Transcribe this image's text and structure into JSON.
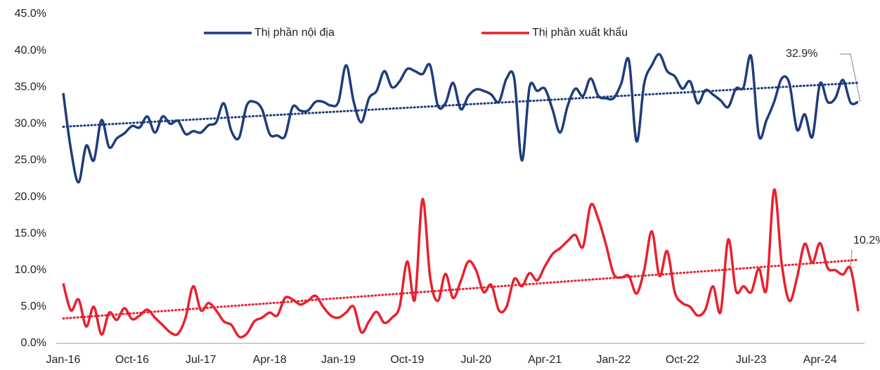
{
  "chart_data": {
    "type": "line",
    "categories": [
      "Jan-16",
      null,
      null,
      null,
      null,
      null,
      null,
      null,
      null,
      "Oct-16",
      null,
      null,
      null,
      null,
      null,
      null,
      null,
      null,
      "Jul-17",
      null,
      null,
      null,
      null,
      null,
      null,
      null,
      null,
      "Apr-18",
      null,
      null,
      null,
      null,
      null,
      null,
      null,
      null,
      "Jan-19",
      null,
      null,
      null,
      null,
      null,
      null,
      null,
      null,
      "Oct-19",
      null,
      null,
      null,
      null,
      null,
      null,
      null,
      null,
      "Jul-20",
      null,
      null,
      null,
      null,
      null,
      null,
      null,
      null,
      "Apr-21",
      null,
      null,
      null,
      null,
      null,
      null,
      null,
      null,
      "Jan-22",
      null,
      null,
      null,
      null,
      null,
      null,
      null,
      null,
      "Oct-22",
      null,
      null,
      null,
      null,
      null,
      null,
      null,
      null,
      "Jul-23",
      null,
      null,
      null,
      null,
      null,
      null,
      null,
      null,
      "Apr-24",
      null,
      null,
      null,
      null,
      null
    ],
    "series": [
      {
        "name": "Thị phần nội địa",
        "color": "#1f3c7c",
        "trend": [
          29.6,
          35.6
        ],
        "values": [
          34.2,
          26.5,
          22.0,
          27.0,
          25.0,
          30.5,
          26.8,
          28.0,
          28.7,
          29.7,
          29.5,
          31.0,
          28.8,
          31.0,
          30.0,
          30.4,
          28.6,
          29.0,
          28.8,
          29.8,
          30.2,
          32.8,
          29.0,
          28.1,
          32.5,
          33.0,
          32.0,
          28.6,
          28.4,
          28.3,
          32.3,
          31.8,
          31.8,
          33.0,
          33.0,
          32.5,
          33.0,
          38.0,
          33.0,
          30.2,
          33.5,
          34.5,
          37.2,
          35.0,
          35.8,
          37.5,
          37.2,
          36.8,
          38.0,
          32.5,
          32.8,
          35.6,
          32.0,
          33.8,
          34.7,
          34.5,
          34.0,
          33.0,
          36.2,
          36.2,
          25.0,
          35.0,
          34.5,
          34.8,
          32.0,
          28.8,
          32.5,
          34.8,
          33.8,
          36.2,
          33.8,
          33.5,
          33.5,
          35.5,
          38.7,
          27.6,
          35.5,
          38.0,
          39.5,
          37.2,
          36.5,
          34.8,
          35.8,
          32.8,
          34.6,
          34.0,
          33.2,
          32.3,
          34.8,
          35.0,
          39.2,
          28.4,
          30.5,
          33.0,
          36.2,
          35.5,
          29.2,
          31.3,
          28.2,
          35.5,
          33.0,
          33.5,
          36.0,
          32.9,
          33.0
        ]
      },
      {
        "name": "Thị phần xuất khẩu",
        "color": "#e8212e",
        "trend": [
          3.4,
          11.4
        ],
        "values": [
          8.2,
          4.5,
          6.0,
          2.3,
          5.0,
          1.2,
          4.2,
          3.2,
          4.8,
          3.3,
          3.8,
          4.6,
          3.5,
          2.5,
          1.5,
          1.3,
          3.5,
          7.8,
          4.5,
          5.5,
          4.5,
          3.0,
          2.5,
          0.9,
          1.3,
          3.0,
          3.5,
          4.2,
          3.8,
          6.2,
          6.0,
          5.3,
          5.8,
          6.5,
          5.0,
          3.8,
          3.5,
          4.2,
          5.0,
          1.5,
          3.0,
          4.3,
          2.8,
          3.5,
          5.0,
          11.2,
          6.0,
          19.7,
          9.0,
          5.8,
          9.5,
          6.2,
          8.5,
          11.2,
          10.0,
          7.0,
          8.0,
          4.5,
          5.0,
          8.8,
          7.8,
          9.6,
          8.6,
          10.5,
          12.2,
          13.0,
          14.0,
          14.8,
          13.2,
          18.9,
          17.0,
          13.5,
          9.5,
          9.0,
          9.2,
          6.8,
          10.0,
          15.3,
          9.2,
          12.6,
          7.0,
          5.5,
          5.0,
          3.8,
          4.6,
          7.8,
          4.3,
          14.2,
          7.2,
          7.8,
          7.0,
          10.2,
          7.4,
          21.0,
          10.8,
          5.8,
          9.0,
          13.6,
          11.0,
          13.7,
          10.3,
          10.0,
          9.4,
          10.2,
          4.4
        ]
      }
    ],
    "annotations": [
      "32.9%",
      "10.2%"
    ],
    "ylim": [
      0,
      45
    ],
    "yticks": [
      {
        "value": 0,
        "label": "0.0%"
      },
      {
        "value": 5,
        "label": "5.0%"
      },
      {
        "value": 10,
        "label": "10.0%"
      },
      {
        "value": 15,
        "label": "15.0%"
      },
      {
        "value": 20,
        "label": "20.0%"
      },
      {
        "value": 25,
        "label": "25.0%"
      },
      {
        "value": 30,
        "label": "30.0%"
      },
      {
        "value": 35,
        "label": "35.0%"
      },
      {
        "value": 40,
        "label": "40.0%"
      },
      {
        "value": 45,
        "label": "45.0%"
      }
    ],
    "grid": false,
    "legend": "top"
  }
}
